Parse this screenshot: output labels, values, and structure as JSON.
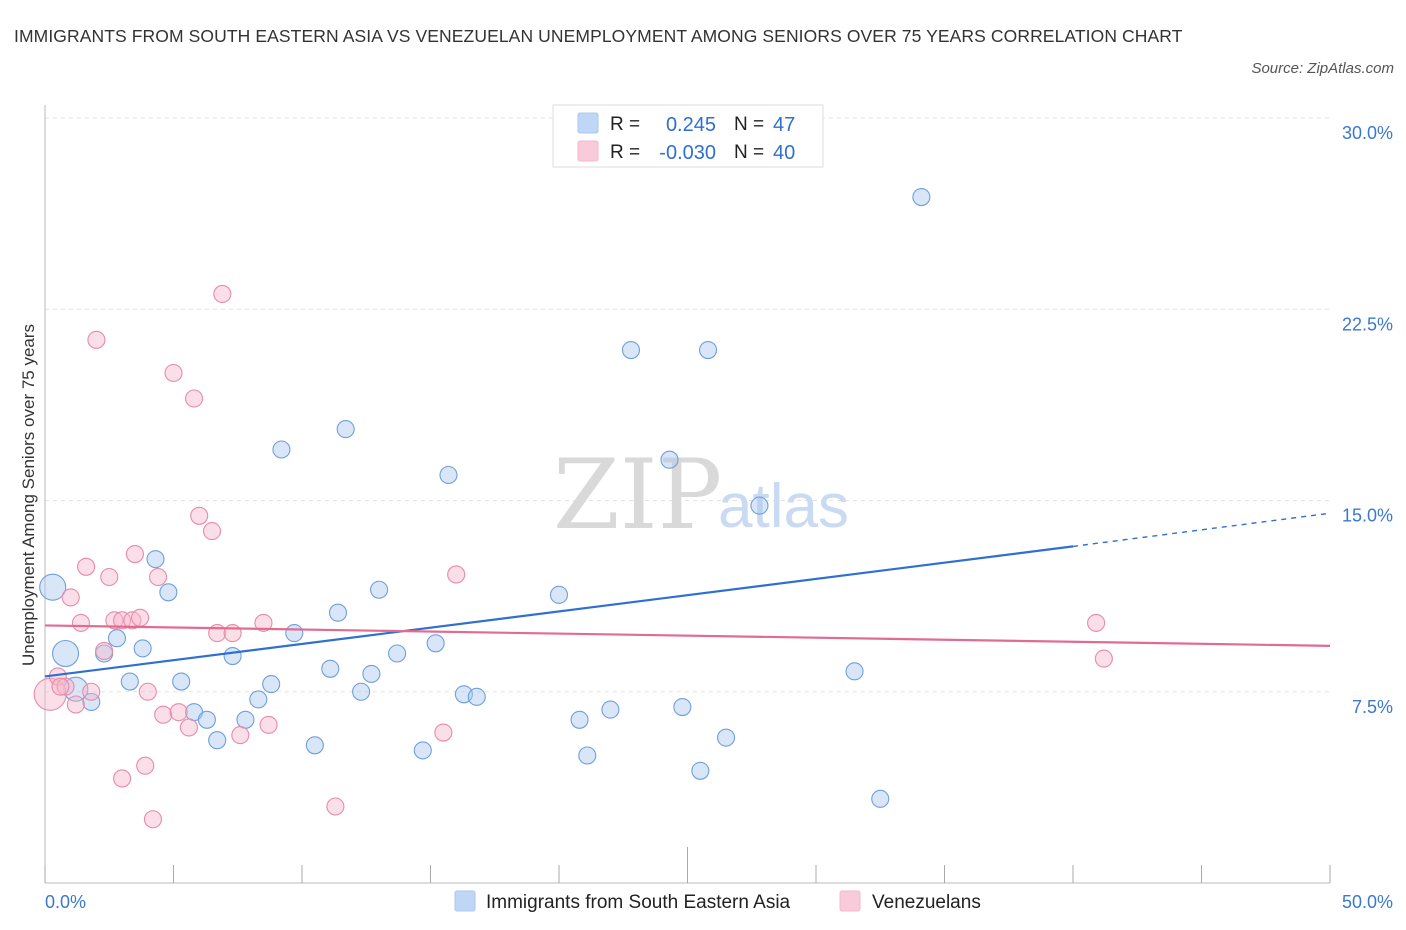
{
  "title": "IMMIGRANTS FROM SOUTH EASTERN ASIA VS VENEZUELAN UNEMPLOYMENT AMONG SENIORS OVER 75 YEARS CORRELATION CHART",
  "source": "Source: ZipAtlas.com",
  "watermark": {
    "zip": "ZIP",
    "atlas": "atlas"
  },
  "legend_top": {
    "rows": [
      {
        "r_label": "R =",
        "r_value": "0.245",
        "n_label": "N =",
        "n_value": "47",
        "color": "#a9c8f0"
      },
      {
        "r_label": "R =",
        "r_value": "-0.030",
        "n_label": "N =",
        "n_value": "40",
        "color": "#f7b8cc"
      }
    ]
  },
  "legend_bottom": {
    "items": [
      {
        "label": "Immigrants from South Eastern Asia",
        "color": "#a9c8f0"
      },
      {
        "label": "Venezuelans",
        "color": "#f7b8cc"
      }
    ]
  },
  "chart_data": {
    "type": "scatter",
    "title": "IMMIGRANTS FROM SOUTH EASTERN ASIA VS VENEZUELAN UNEMPLOYMENT AMONG SENIORS OVER 75 YEARS CORRELATION CHART",
    "xlabel": "",
    "ylabel": "Unemployment Among Seniors over 75 years",
    "xlim": [
      0,
      50
    ],
    "ylim": [
      0,
      30
    ],
    "x_tick_labels": [
      "0.0%",
      "50.0%"
    ],
    "y_ticks": [
      7.5,
      15.0,
      22.5,
      30.0
    ],
    "y_tick_labels": [
      "7.5%",
      "15.0%",
      "22.5%",
      "30.0%"
    ],
    "grid": true,
    "legend_position": "top-center",
    "series": [
      {
        "name": "Immigrants from South Eastern Asia",
        "color": "#a9c8f0",
        "stroke": "#6f9fdd",
        "trend_color": "#2f6fcf",
        "trend": {
          "x0": 0,
          "y0": 8.1,
          "x1": 40,
          "y1": 13.2,
          "dashed_to_x": 50,
          "dashed_to_y": 14.5
        },
        "points": [
          {
            "x": 0.3,
            "y": 11.6,
            "r": 13
          },
          {
            "x": 0.8,
            "y": 9.0,
            "r": 13
          },
          {
            "x": 1.2,
            "y": 7.6,
            "r": 12
          },
          {
            "x": 1.8,
            "y": 7.1
          },
          {
            "x": 2.3,
            "y": 9.0
          },
          {
            "x": 2.8,
            "y": 9.6
          },
          {
            "x": 3.3,
            "y": 7.9
          },
          {
            "x": 3.8,
            "y": 9.2
          },
          {
            "x": 4.3,
            "y": 12.7
          },
          {
            "x": 4.8,
            "y": 11.4
          },
          {
            "x": 5.3,
            "y": 7.9
          },
          {
            "x": 5.8,
            "y": 6.7
          },
          {
            "x": 6.3,
            "y": 6.4
          },
          {
            "x": 6.7,
            "y": 5.6
          },
          {
            "x": 7.3,
            "y": 8.9
          },
          {
            "x": 7.8,
            "y": 6.4
          },
          {
            "x": 8.3,
            "y": 7.2
          },
          {
            "x": 8.8,
            "y": 7.8
          },
          {
            "x": 9.2,
            "y": 17.0
          },
          {
            "x": 9.7,
            "y": 9.8
          },
          {
            "x": 10.5,
            "y": 5.4
          },
          {
            "x": 11.1,
            "y": 8.4
          },
          {
            "x": 11.4,
            "y": 10.6
          },
          {
            "x": 11.7,
            "y": 17.8
          },
          {
            "x": 12.3,
            "y": 7.5
          },
          {
            "x": 12.7,
            "y": 8.2
          },
          {
            "x": 13.0,
            "y": 11.5
          },
          {
            "x": 13.7,
            "y": 9.0
          },
          {
            "x": 14.7,
            "y": 5.2
          },
          {
            "x": 15.2,
            "y": 9.4
          },
          {
            "x": 15.7,
            "y": 16.0
          },
          {
            "x": 16.3,
            "y": 7.4
          },
          {
            "x": 16.8,
            "y": 7.3
          },
          {
            "x": 20.0,
            "y": 11.3
          },
          {
            "x": 20.8,
            "y": 6.4
          },
          {
            "x": 21.1,
            "y": 5.0
          },
          {
            "x": 22.0,
            "y": 6.8
          },
          {
            "x": 22.8,
            "y": 20.9
          },
          {
            "x": 24.3,
            "y": 16.6
          },
          {
            "x": 24.8,
            "y": 6.9
          },
          {
            "x": 25.5,
            "y": 4.4
          },
          {
            "x": 25.8,
            "y": 20.9
          },
          {
            "x": 26.5,
            "y": 5.7
          },
          {
            "x": 27.8,
            "y": 14.8
          },
          {
            "x": 31.5,
            "y": 8.3
          },
          {
            "x": 32.5,
            "y": 3.3
          },
          {
            "x": 34.1,
            "y": 26.9
          }
        ]
      },
      {
        "name": "Venezuelans",
        "color": "#f7b8cc",
        "stroke": "#e98aa8",
        "trend_color": "#e26b90",
        "trend": {
          "x0": 0,
          "y0": 10.1,
          "x1": 50,
          "y1": 9.3
        },
        "points": [
          {
            "x": 0.2,
            "y": 7.4,
            "r": 16
          },
          {
            "x": 0.5,
            "y": 8.1
          },
          {
            "x": 0.8,
            "y": 7.7
          },
          {
            "x": 1.0,
            "y": 11.2
          },
          {
            "x": 1.2,
            "y": 7.0
          },
          {
            "x": 1.4,
            "y": 10.2
          },
          {
            "x": 1.6,
            "y": 12.4
          },
          {
            "x": 1.8,
            "y": 7.5
          },
          {
            "x": 2.0,
            "y": 21.3
          },
          {
            "x": 2.3,
            "y": 9.1
          },
          {
            "x": 2.5,
            "y": 12.0
          },
          {
            "x": 2.7,
            "y": 10.3
          },
          {
            "x": 3.0,
            "y": 10.3
          },
          {
            "x": 3.0,
            "y": 4.1
          },
          {
            "x": 3.4,
            "y": 10.3
          },
          {
            "x": 3.5,
            "y": 12.9
          },
          {
            "x": 3.7,
            "y": 10.4
          },
          {
            "x": 3.9,
            "y": 4.6
          },
          {
            "x": 4.0,
            "y": 7.5
          },
          {
            "x": 4.2,
            "y": 2.5
          },
          {
            "x": 4.4,
            "y": 12.0
          },
          {
            "x": 4.6,
            "y": 6.6
          },
          {
            "x": 5.0,
            "y": 20.0
          },
          {
            "x": 5.2,
            "y": 6.7
          },
          {
            "x": 5.6,
            "y": 6.1
          },
          {
            "x": 5.8,
            "y": 19.0
          },
          {
            "x": 6.0,
            "y": 14.4
          },
          {
            "x": 6.5,
            "y": 13.8
          },
          {
            "x": 6.7,
            "y": 9.8
          },
          {
            "x": 6.9,
            "y": 23.1
          },
          {
            "x": 7.3,
            "y": 9.8
          },
          {
            "x": 7.6,
            "y": 5.8
          },
          {
            "x": 8.5,
            "y": 10.2
          },
          {
            "x": 8.7,
            "y": 6.2
          },
          {
            "x": 11.3,
            "y": 3.0
          },
          {
            "x": 15.5,
            "y": 5.9
          },
          {
            "x": 16.0,
            "y": 12.1
          },
          {
            "x": 40.9,
            "y": 10.2
          },
          {
            "x": 41.2,
            "y": 8.8
          },
          {
            "x": 0.6,
            "y": 7.7
          }
        ]
      }
    ]
  }
}
